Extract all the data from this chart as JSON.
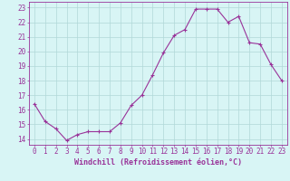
{
  "x": [
    0,
    1,
    2,
    3,
    4,
    5,
    6,
    7,
    8,
    9,
    10,
    11,
    12,
    13,
    14,
    15,
    16,
    17,
    18,
    19,
    20,
    21,
    22,
    23
  ],
  "y": [
    16.4,
    15.2,
    14.7,
    13.9,
    14.3,
    14.5,
    14.5,
    14.5,
    15.1,
    16.3,
    17.0,
    18.4,
    19.9,
    21.1,
    21.5,
    22.9,
    22.9,
    22.9,
    22.0,
    22.4,
    20.6,
    20.5,
    19.1,
    18.0
  ],
  "line_color": "#993399",
  "marker": "+",
  "marker_size": 3,
  "linewidth": 0.8,
  "background_color": "#d8f5f5",
  "grid_color": "#b0d8d8",
  "xlabel": "Windchill (Refroidissement éolien,°C)",
  "xlabel_fontsize": 6,
  "yticks": [
    14,
    15,
    16,
    17,
    18,
    19,
    20,
    21,
    22,
    23
  ],
  "xticks": [
    0,
    1,
    2,
    3,
    4,
    5,
    6,
    7,
    8,
    9,
    10,
    11,
    12,
    13,
    14,
    15,
    16,
    17,
    18,
    19,
    20,
    21,
    22,
    23
  ],
  "ylim": [
    13.6,
    23.4
  ],
  "xlim": [
    -0.5,
    23.5
  ],
  "tick_fontsize": 5.5,
  "tick_color": "#993399",
  "axis_color": "#993399",
  "xlabel_fontweight": "bold"
}
